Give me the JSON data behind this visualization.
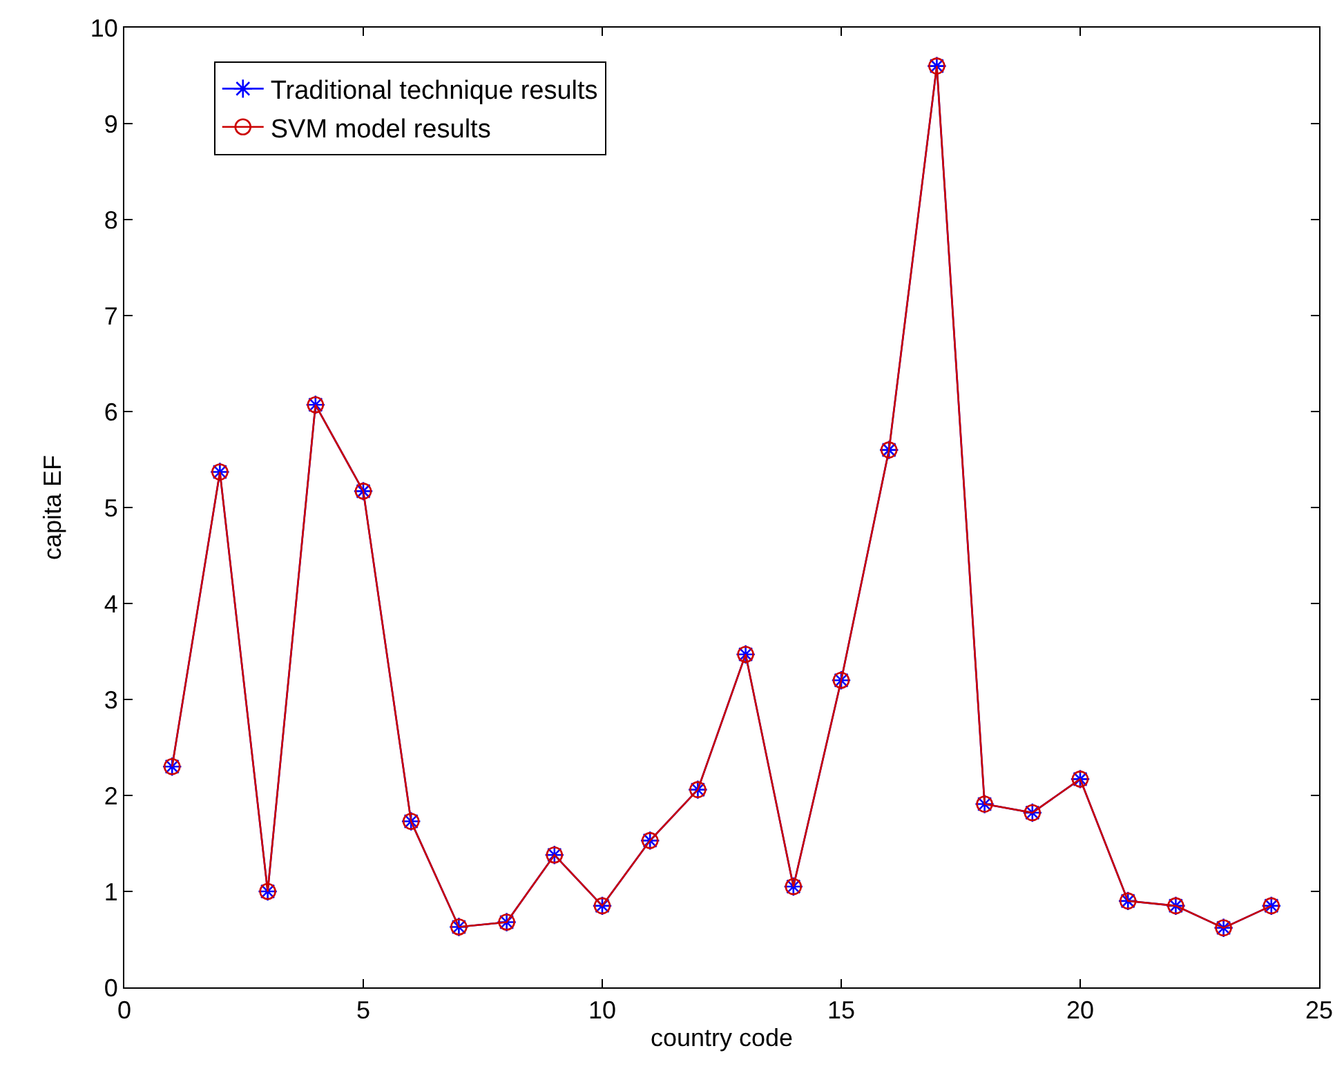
{
  "chart_data": {
    "type": "line",
    "xlabel": "country code",
    "ylabel": "capita EF",
    "x": [
      1,
      2,
      3,
      4,
      5,
      6,
      7,
      8,
      9,
      10,
      11,
      12,
      13,
      14,
      15,
      16,
      17,
      18,
      19,
      20,
      21,
      22,
      23,
      24
    ],
    "series": [
      {
        "name": "Traditional technique results",
        "color": "#0000ff",
        "marker": "cross",
        "values": [
          2.3,
          5.37,
          1.0,
          6.07,
          5.17,
          1.73,
          0.63,
          0.68,
          1.38,
          0.85,
          1.53,
          2.06,
          3.47,
          1.05,
          3.2,
          5.6,
          9.6,
          1.91,
          1.82,
          2.17,
          0.9,
          0.85,
          0.62,
          0.85
        ]
      },
      {
        "name": "SVM model results",
        "color": "#cc0000",
        "marker": "circle",
        "values": [
          2.3,
          5.37,
          1.0,
          6.07,
          5.17,
          1.73,
          0.63,
          0.68,
          1.38,
          0.85,
          1.53,
          2.06,
          3.47,
          1.05,
          3.2,
          5.6,
          9.6,
          1.91,
          1.82,
          2.17,
          0.9,
          0.85,
          0.62,
          0.85
        ]
      }
    ],
    "xlim": [
      0,
      25
    ],
    "xticks": [
      0,
      5,
      10,
      15,
      20,
      25
    ],
    "ylim": [
      0,
      10
    ],
    "yticks": [
      0,
      1,
      2,
      3,
      4,
      5,
      6,
      7,
      8,
      9,
      10
    ],
    "grid": false,
    "legend": "top left",
    "line_style": "solid"
  }
}
